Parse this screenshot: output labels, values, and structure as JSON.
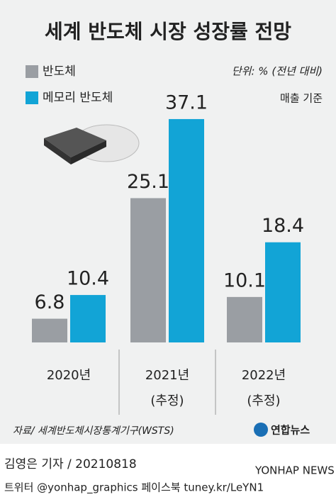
{
  "chart_data": {
    "type": "bar",
    "title": "세계 반도체 시장 성장률 전망",
    "unit": "단위: % (전년 대비)",
    "basis": "매출 기준",
    "categories": [
      "2020년",
      "2021년",
      "2022년"
    ],
    "category_notes": [
      null,
      "(추정)",
      "(추정)"
    ],
    "series": [
      {
        "name": "반도체",
        "color": "#9a9ea3",
        "values": [
          6.8,
          25.1,
          10.1
        ]
      },
      {
        "name": "메모리 반도체",
        "color": "#12a4d6",
        "values": [
          10.4,
          37.1,
          18.4
        ]
      }
    ],
    "ylim": [
      3.2,
      40
    ],
    "source": "자료/ 세계반도체시장통계기구(WSTS)",
    "logo": "연합뉴스",
    "watermark": "YONHAP NEWS",
    "byline": "김영은 기자 / 20210818",
    "social": "트위터 @yonhap_graphics  페이스북 tuney.kr/LeYN1"
  }
}
